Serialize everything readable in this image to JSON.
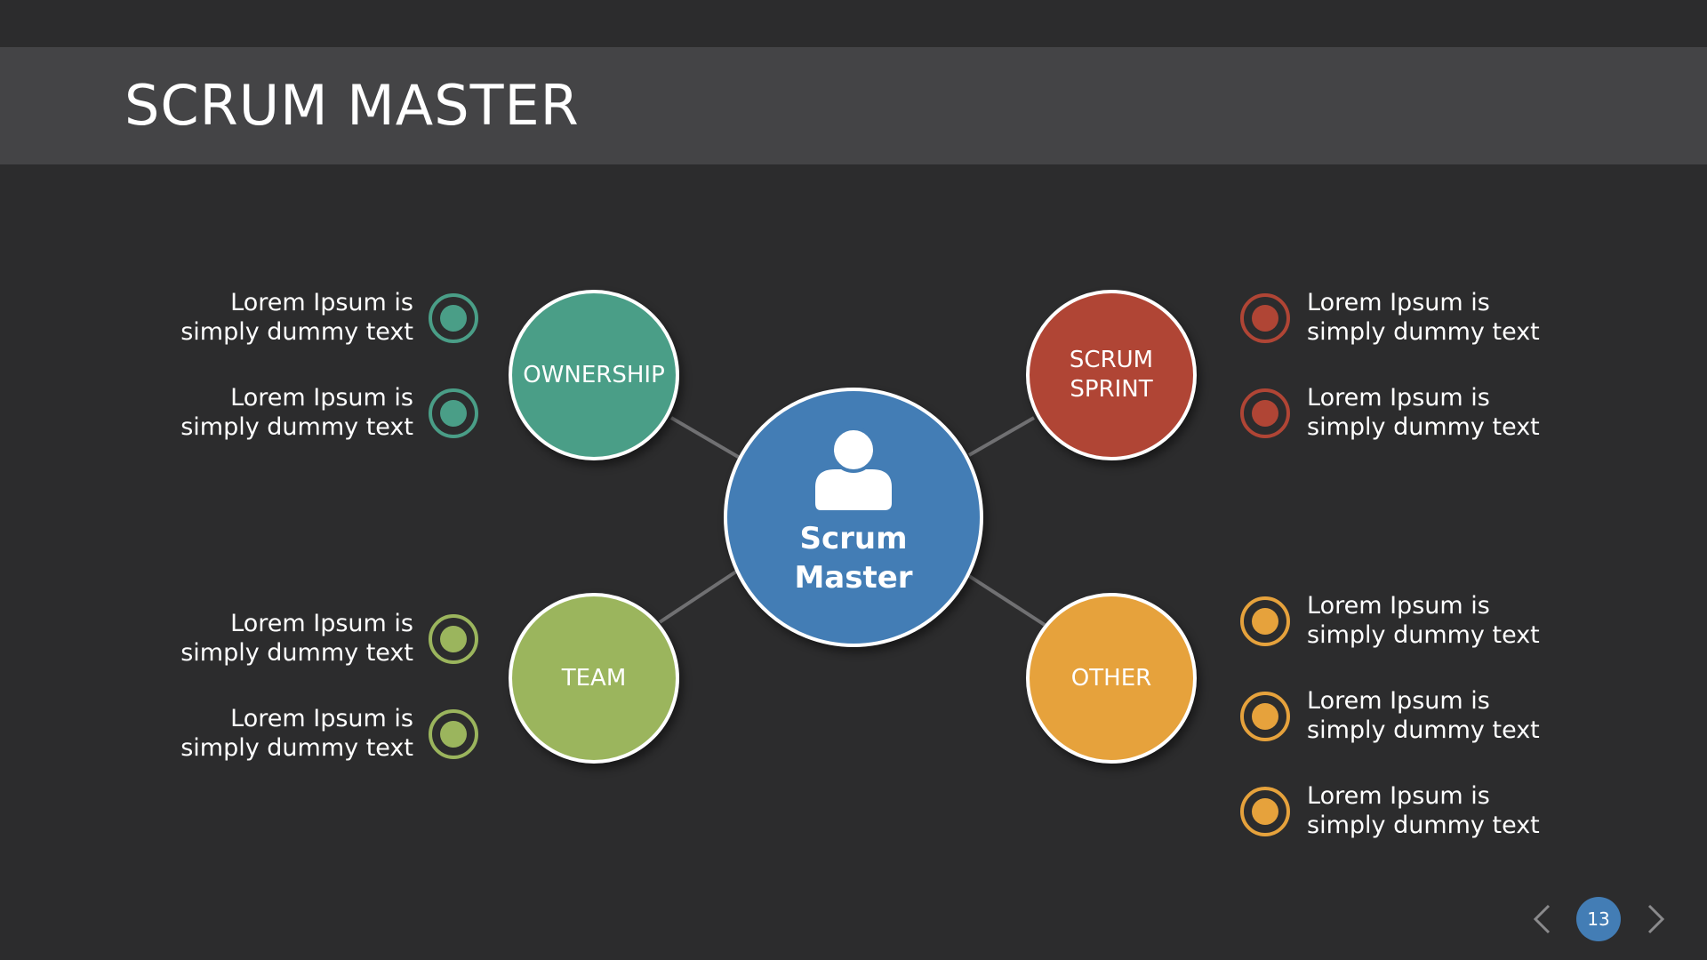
{
  "slide": {
    "title": "SCRUM MASTER",
    "page_number": "13"
  },
  "center": {
    "label_line1": "Scrum",
    "label_line2": "Master",
    "icon": "user-icon",
    "color": "#437db5"
  },
  "nodes": {
    "ownership": {
      "label": "OWNERSHIP",
      "color": "#4a9e87"
    },
    "scrum_sprint": {
      "label_line1": "SCRUM",
      "label_line2": "SPRINT",
      "color": "#b04535"
    },
    "team": {
      "label": "TEAM",
      "color": "#9bb55d"
    },
    "other": {
      "label": "OTHER",
      "color": "#e6a23c"
    }
  },
  "bullets": {
    "ownership": [
      {
        "line1": "Lorem Ipsum is",
        "line2": "simply dummy text"
      },
      {
        "line1": "Lorem Ipsum is",
        "line2": "simply dummy text"
      }
    ],
    "scrum_sprint": [
      {
        "line1": "Lorem Ipsum is",
        "line2": "simply dummy text"
      },
      {
        "line1": "Lorem Ipsum is",
        "line2": "simply dummy text"
      }
    ],
    "team": [
      {
        "line1": "Lorem Ipsum is",
        "line2": "simply dummy text"
      },
      {
        "line1": "Lorem Ipsum is",
        "line2": "simply dummy text"
      }
    ],
    "other": [
      {
        "line1": "Lorem Ipsum is",
        "line2": "simply dummy text"
      },
      {
        "line1": "Lorem Ipsum is",
        "line2": "simply dummy text"
      },
      {
        "line1": "Lorem Ipsum is",
        "line2": "simply dummy text"
      }
    ]
  },
  "navigation": {
    "prev_icon": "chevron-left-icon",
    "next_icon": "chevron-right-icon"
  }
}
